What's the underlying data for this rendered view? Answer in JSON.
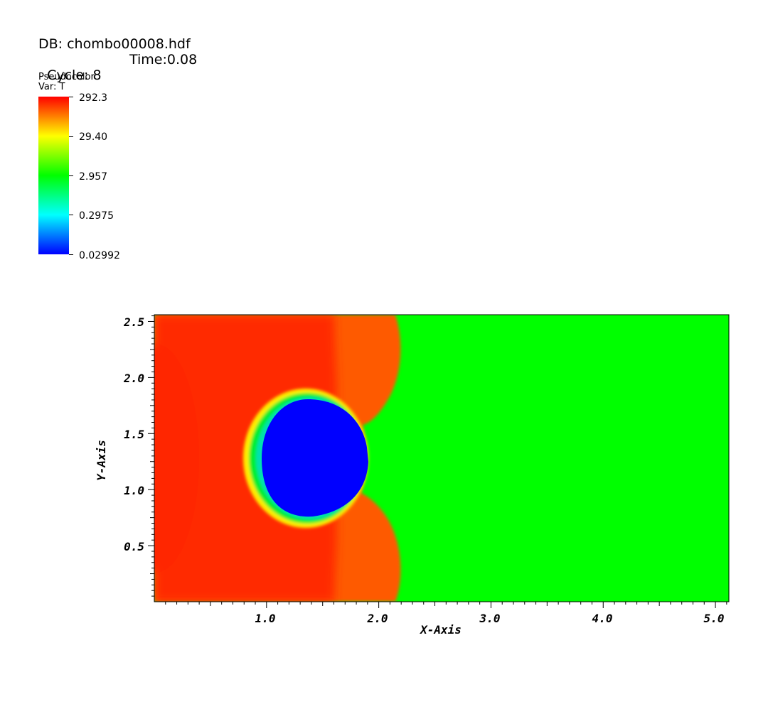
{
  "header": {
    "db": "DB: chombo00008.hdf",
    "cycle": "Cycle: 8",
    "time": "Time:0.08"
  },
  "legend": {
    "plot_type": "Pseudocolor",
    "var": "Var: T",
    "labels": [
      "292.3",
      "29.40",
      "2.957",
      "0.2975",
      "0.02992"
    ],
    "colors": [
      "#ff0000",
      "#ffff00",
      "#00ff00",
      "#00ffff",
      "#0000ff"
    ]
  },
  "chart_data": {
    "type": "heatmap",
    "variable": "T",
    "scale": "log",
    "xlabel": "X-Axis",
    "ylabel": "Y-Axis",
    "xlim": [
      0.0,
      5.12
    ],
    "ylim": [
      0.0,
      2.56
    ],
    "x_ticks": [
      "1.0",
      "2.0",
      "3.0",
      "4.0",
      "5.0"
    ],
    "y_ticks": [
      "0.5",
      "1.0",
      "1.5",
      "2.0",
      "2.5"
    ],
    "color_range": [
      0.02992,
      292.3
    ],
    "regions": [
      {
        "name": "ambient",
        "value": 2.957,
        "color": "#00ff00",
        "x_range": [
          2.2,
          5.12
        ]
      },
      {
        "name": "shocked",
        "value": 292.3,
        "color": "#ff2200",
        "x_range": [
          0.0,
          2.2
        ]
      },
      {
        "name": "bubble",
        "value": 0.02992,
        "color": "#0000ff",
        "center": [
          1.4,
          1.28
        ]
      }
    ]
  }
}
